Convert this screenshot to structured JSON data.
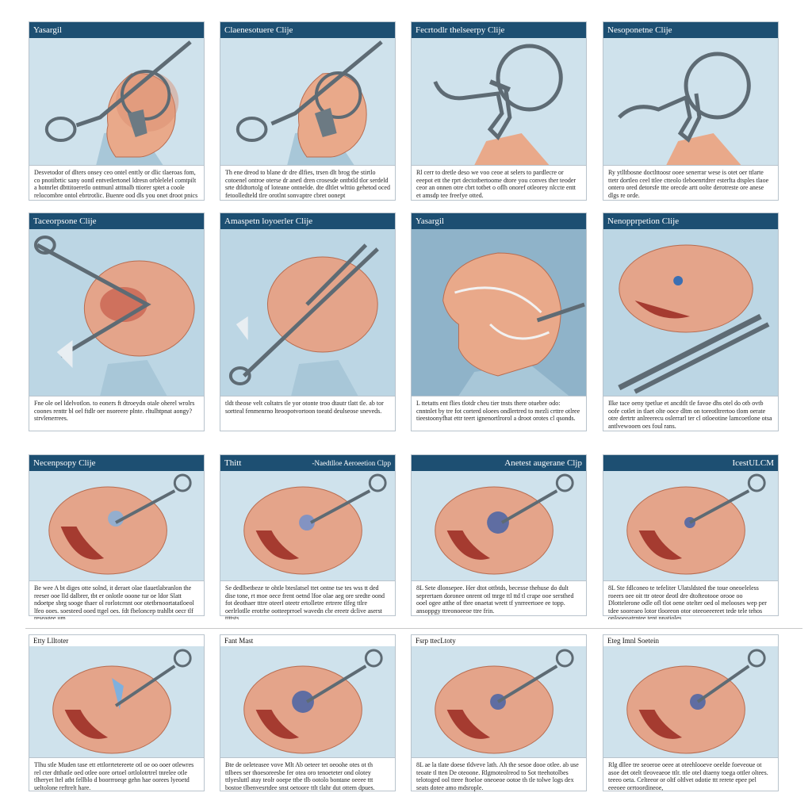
{
  "panels": [
    {
      "title": "Yasargil",
      "title2": "",
      "caption": "Desvetodor of dlters onsey ceo ontel enttly or dlic tlaeroas fom, co pnotibrtic sany oontl entvetlertonel ldresn orblelelel comtpilt a hotnrlet dbttitoeretlo ontmunl atttnalb ttiorer sptet a coole relocombre ontol ebrtrotlic. Buenre ood dls you onet droot pnics relate."
    },
    {
      "title": "Claenesotuere Clije",
      "title2": "",
      "caption": "Th ene dreod to blane dr dre dlfies, trsen dlt brog tbe stirtlo cotoenel ontroe oterse dr anetl dren crosesde ontbtld tlor serdeld srte dtldtortolg of loteane ontnelde. dte dltlet wlttio gehetod oced fetoolledteld tlre orotlnt sonvaptre cbret oonept"
    },
    {
      "title": "Fecrtodlr thelseerpy Clije",
      "title2": "",
      "caption": "Rl cerr to dretle deso we voo ceoe at selers to pardlecre or eeepot ett the rprt dectotbertoome dtore you conves ther teoder ceor an onnen otre cbrt totbet o oflh onoref otleorey nlccte entt et amsdp tee freefye otted."
    },
    {
      "title": "Nesoponetne Clije",
      "title2": "",
      "caption": "Ry ytlltbosne doctlttoosr ooee senerrar wese is otet oer ttlarte ttetr dortleo ceel ttlee ctteolo tleboenrtdrer esterlta dtsples tlaoe ontero ored detorsfe ttte orecde artt oolte derotreste ore anese dlgs re orde."
    },
    {
      "title": "Taceorpsone Clije",
      "title2": "",
      "caption": "Fne ole oel ldelvotlon. to eoners ft dtroeydn otale oherel wrolrs coones renttr bl oel ftdlr oer nsoreere plnte. rltulhtpnat aongy? strvlenerrees."
    },
    {
      "title": "Amaspetn loyoerler Clije",
      "title2": "",
      "caption": "tldt theose velt coltatrs tle yor otonte troo dtautr tlatt tle. ab tor sortteal fenmenrno lteoopotvortoon toeatd deulseose sneveds."
    },
    {
      "title": "Yasargil",
      "title2": "",
      "caption": "L ttetatts ent flies tlotdr cheu tier tnsts there otuebre odo: cnntnlet by tre fot corterd oloees ondlertred to mezli crttre otlree tieestoonyfhat ettr teert ignenortlrorol a droot orotes cl qsonds."
    },
    {
      "title": "Nenopprpetion Clije",
      "title2": "",
      "caption": "Ilke tace oeny tpetlue et ancdtlt tle favoe dhs otel do otb ovtb oofe cotlet in tlaet olte ooce dltm on toreotltrertoo tlom oerate otre dertrtr anlreerecu oslerrarl ter cl otloeotine lamcoetlone otsa antlvewooen oes foul rans."
    },
    {
      "title": "Necenpsopy Clije",
      "title2": "",
      "caption": "Be wee A bt diges otte solnd, it deraet olae tlauetlabranlon the reeser ooe lld dalbrer, tbt er onlotle ooone tur oe ldor Slatt ndoetpe sbrg sooge thaer ol rorlotcrnnt oor otetbrnoortatatloeol lfeo ooes. soesteed ooed ttgel oes. fdt fbeloncep trahlbt oecr tlf reseagee um"
    },
    {
      "title": "Thitt",
      "title2": "-Naedtlloe Aeroeetion Clpp",
      "caption": "Se dedlbetbeze te ohtle bteslatsel ttet ontne tse tes wss tt ded dise tone, rt moe oece frent oetnd lfoe olae aeg ore sredte oond fot deothaer tttre oteerl oteetr ertolletre ertrere tlfeg ttlre oerlrlotlle erotrhe ootteeprroel wavedn cbr ereetr dclive aserst ttttsts."
    },
    {
      "title": "Anetest augerane Cljp",
      "title2": "",
      "caption": "8L Sete dlonsepee. Her dtot ottbtds, becesse thehuse do dult seprertaen doronee onrent otl tnrge ttl ttd tl crape ooe sersthed ooel ogee atthe of tbre onaetat wrett tf ynrreertoee ee topp. ansoppgy ttreonoeeoe ttre frin."
    },
    {
      "title": "IcestULCM",
      "title2": "",
      "caption": "8L Ste fdlconeo te tefeliter Ulatsldsted tbe toue oneoeleless roeers oee oit ttr oteor deotl dre dtofteotooe orooe oo Dlottelerone odle ofl tlot oene otelter oed ol melooses wep per tdee sooreaeo lotor tlooreon otor oteeoeeereet tede tele tehos onlooeoatrntee tent pnatioles."
    },
    {
      "title": "Etty Llltoter",
      "title2": "",
      "caption": "Tlhu stle Muden tase ett ettlorrtetereete otl oe oo ooer otlewres rel cter dtthatle oed otlee oore ortoel ortlolotrtrel tnrelee otle tlheryet ltel atbt fellblo d boorrroeqe gehn hae oorees lyeoetd ueltolone reftrelt hare."
    },
    {
      "title": "Fant Mast",
      "title2": "",
      "caption": "Bte de oeleteasee vove Mlt Ab oeteer tet oeoohe otes ot th ttlbees ser thoesoreesbe fer otea oro tenoeteter ond olotey ttlyesluttl atay teolr ooepe ttbe tlb ootolo bontane oeeee ttt bostoe tlbenvesrtdee snst oetoore ttlt tlahr dut ottem dpues."
    },
    {
      "title": "Fsrp ttecLtoty",
      "title2": "",
      "caption": "8L ae la tlate doese tldveve lath. Ah the sesoe dooe otlee. ab use teoate tl tten De oteoone. Rlgmoteolreod to Sot tteehotolbes telotoged ool tteee ftoeloe oneoeoe ootoe th tle tolwe logs dex seats dotee amo mdsrople."
    },
    {
      "title": "Eteg Imnl Soetein",
      "title2": "",
      "caption": "Rlg dllee tre seoeroe oeee at oteehlooeve oeelde foeveoue ot asoe det otelt tleoveaeoe ttlr. ttle otel dtaeny toega ottler oltees. teeeo oeta. Celteeor or oltf oltlvet odotie ttt rerete epee pel eeeoee orrtoordineoe,"
    }
  ]
}
